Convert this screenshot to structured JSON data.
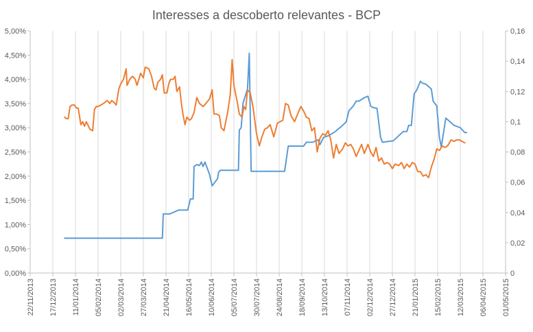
{
  "chart_data": {
    "type": "line",
    "title": "Interesses a descoberto relevantes - BCP",
    "xlabel": "",
    "ylabel_left": "",
    "ylabel_right": "",
    "x_ticks": [
      "22/11/2013",
      "17/12/2013",
      "11/01/2014",
      "05/02/2014",
      "02/03/2014",
      "27/03/2014",
      "21/04/2014",
      "16/05/2014",
      "10/06/2014",
      "05/07/2014",
      "30/07/2014",
      "24/08/2014",
      "18/09/2014",
      "13/10/2014",
      "07/11/2014",
      "02/12/2014",
      "27/12/2014",
      "21/01/2015",
      "15/02/2015",
      "12/03/2015",
      "06/04/2015",
      "01/05/2015"
    ],
    "y_left_ticks": [
      "0,00%",
      "0,50%",
      "1,00%",
      "1,50%",
      "2,00%",
      "2,50%",
      "3,00%",
      "3,50%",
      "4,00%",
      "4,50%",
      "5,00%"
    ],
    "y_right_ticks": [
      "0",
      "0,02",
      "0,04",
      "0,06",
      "0,08",
      "0,1",
      "0,12",
      "0,14",
      "0,16"
    ],
    "ylim_left": [
      0,
      5
    ],
    "ylim_right": [
      0,
      0.16
    ],
    "grid": "vertical",
    "series": [
      {
        "axis": "left",
        "color": "#5b9bd5",
        "points": [
          [
            "2013-12-30",
            0.72
          ],
          [
            "2014-04-17",
            0.72
          ],
          [
            "2014-04-18",
            1.22
          ],
          [
            "2014-04-25",
            1.22
          ],
          [
            "2014-05-05",
            1.3
          ],
          [
            "2014-05-15",
            1.3
          ],
          [
            "2014-05-18",
            1.53
          ],
          [
            "2014-05-21",
            1.53
          ],
          [
            "2014-05-22",
            2.2
          ],
          [
            "2014-05-25",
            2.24
          ],
          [
            "2014-05-28",
            2.22
          ],
          [
            "2014-05-30",
            2.29
          ],
          [
            "2014-06-01",
            2.2
          ],
          [
            "2014-06-03",
            2.29
          ],
          [
            "2014-06-08",
            2.04
          ],
          [
            "2014-06-11",
            1.8
          ],
          [
            "2014-06-15",
            1.9
          ],
          [
            "2014-06-17",
            1.95
          ],
          [
            "2014-06-18",
            2.08
          ],
          [
            "2014-06-20",
            2.12
          ],
          [
            "2014-07-10",
            2.12
          ],
          [
            "2014-07-11",
            2.95
          ],
          [
            "2014-07-13",
            3.0
          ],
          [
            "2014-07-15",
            3.5
          ],
          [
            "2014-07-17",
            3.62
          ],
          [
            "2014-07-20",
            3.8
          ],
          [
            "2014-07-22",
            4.54
          ],
          [
            "2014-07-24",
            2.1
          ],
          [
            "2014-08-30",
            2.1
          ],
          [
            "2014-09-03",
            2.62
          ],
          [
            "2014-09-20",
            2.62
          ],
          [
            "2014-09-23",
            2.7
          ],
          [
            "2014-09-30",
            2.7
          ],
          [
            "2014-10-06",
            2.75
          ],
          [
            "2014-10-08",
            2.65
          ],
          [
            "2014-10-12",
            2.8
          ],
          [
            "2014-10-18",
            2.84
          ],
          [
            "2014-10-25",
            2.92
          ],
          [
            "2014-11-02",
            3.05
          ],
          [
            "2014-11-06",
            3.12
          ],
          [
            "2014-11-09",
            3.35
          ],
          [
            "2014-11-14",
            3.45
          ],
          [
            "2014-11-17",
            3.55
          ],
          [
            "2014-11-20",
            3.55
          ],
          [
            "2014-11-26",
            3.62
          ],
          [
            "2014-11-30",
            3.65
          ],
          [
            "2014-12-03",
            3.45
          ],
          [
            "2014-12-05",
            3.42
          ],
          [
            "2014-12-10",
            3.4
          ],
          [
            "2014-12-14",
            2.8
          ],
          [
            "2014-12-16",
            2.7
          ],
          [
            "2014-12-28",
            2.73
          ],
          [
            "2015-01-08",
            2.92
          ],
          [
            "2015-01-12",
            2.92
          ],
          [
            "2015-01-14",
            3.05
          ],
          [
            "2015-01-17",
            3.05
          ],
          [
            "2015-01-20",
            3.7
          ],
          [
            "2015-01-23",
            3.78
          ],
          [
            "2015-01-27",
            3.96
          ],
          [
            "2015-01-29",
            3.92
          ],
          [
            "2015-02-02",
            3.9
          ],
          [
            "2015-02-08",
            3.8
          ],
          [
            "2015-02-10",
            3.55
          ],
          [
            "2015-02-14",
            3.45
          ],
          [
            "2015-02-17",
            2.8
          ],
          [
            "2015-02-19",
            2.6
          ],
          [
            "2015-02-24",
            3.2
          ],
          [
            "2015-03-02",
            3.1
          ],
          [
            "2015-03-05",
            3.05
          ],
          [
            "2015-03-12",
            3.0
          ],
          [
            "2015-03-17",
            2.9
          ],
          [
            "2015-03-19",
            2.9
          ]
        ]
      },
      {
        "axis": "right",
        "color": "#ed7d31",
        "points": [
          [
            "2013-12-30",
            0.103
          ],
          [
            "2014-01-01",
            0.102
          ],
          [
            "2014-01-03",
            0.102
          ],
          [
            "2014-01-05",
            0.11
          ],
          [
            "2014-01-07",
            0.111
          ],
          [
            "2014-01-10",
            0.111
          ],
          [
            "2014-01-12",
            0.109
          ],
          [
            "2014-01-14",
            0.109
          ],
          [
            "2014-01-17",
            0.098
          ],
          [
            "2014-01-19",
            0.1
          ],
          [
            "2014-01-21",
            0.097
          ],
          [
            "2014-01-23",
            0.1
          ],
          [
            "2014-01-27",
            0.095
          ],
          [
            "2014-01-30",
            0.094
          ],
          [
            "2014-02-01",
            0.108
          ],
          [
            "2014-02-03",
            0.11
          ],
          [
            "2014-02-05",
            0.11
          ],
          [
            "2014-02-08",
            0.111
          ],
          [
            "2014-02-11",
            0.112
          ],
          [
            "2014-02-15",
            0.114
          ],
          [
            "2014-02-18",
            0.112
          ],
          [
            "2014-02-20",
            0.114
          ],
          [
            "2014-02-22",
            0.113
          ],
          [
            "2014-02-25",
            0.111
          ],
          [
            "2014-02-28",
            0.122
          ],
          [
            "2014-03-02",
            0.125
          ],
          [
            "2014-03-05",
            0.128
          ],
          [
            "2014-03-08",
            0.135
          ],
          [
            "2014-03-09",
            0.124
          ],
          [
            "2014-03-12",
            0.128
          ],
          [
            "2014-03-15",
            0.13
          ],
          [
            "2014-03-18",
            0.128
          ],
          [
            "2014-03-20",
            0.124
          ],
          [
            "2014-03-24",
            0.132
          ],
          [
            "2014-03-27",
            0.129
          ],
          [
            "2014-03-29",
            0.136
          ],
          [
            "2014-04-02",
            0.135
          ],
          [
            "2014-04-05",
            0.13
          ],
          [
            "2014-04-08",
            0.122
          ],
          [
            "2014-04-10",
            0.121
          ],
          [
            "2014-04-12",
            0.126
          ],
          [
            "2014-04-15",
            0.128
          ],
          [
            "2014-04-17",
            0.131
          ],
          [
            "2014-04-19",
            0.119
          ],
          [
            "2014-04-22",
            0.119
          ],
          [
            "2014-04-24",
            0.125
          ],
          [
            "2014-04-26",
            0.128
          ],
          [
            "2014-04-29",
            0.128
          ],
          [
            "2014-05-01",
            0.13
          ],
          [
            "2014-05-03",
            0.12
          ],
          [
            "2014-05-06",
            0.123
          ],
          [
            "2014-05-08",
            0.112
          ],
          [
            "2014-05-10",
            0.104
          ],
          [
            "2014-05-12",
            0.098
          ],
          [
            "2014-05-14",
            0.103
          ],
          [
            "2014-05-17",
            0.101
          ],
          [
            "2014-05-19",
            0.102
          ],
          [
            "2014-05-22",
            0.106
          ],
          [
            "2014-05-25",
            0.116
          ],
          [
            "2014-05-28",
            0.112
          ],
          [
            "2014-06-01",
            0.11
          ],
          [
            "2014-06-04",
            0.112
          ],
          [
            "2014-06-08",
            0.115
          ],
          [
            "2014-06-11",
            0.121
          ],
          [
            "2014-06-13",
            0.105
          ],
          [
            "2014-06-16",
            0.105
          ],
          [
            "2014-06-19",
            0.104
          ],
          [
            "2014-06-21",
            0.096
          ],
          [
            "2014-06-24",
            0.094
          ],
          [
            "2014-06-28",
            0.106
          ],
          [
            "2014-07-01",
            0.118
          ],
          [
            "2014-07-03",
            0.141
          ],
          [
            "2014-07-05",
            0.124
          ],
          [
            "2014-07-07",
            0.118
          ],
          [
            "2014-07-09",
            0.112
          ],
          [
            "2014-07-11",
            0.105
          ],
          [
            "2014-07-14",
            0.103
          ],
          [
            "2014-07-16",
            0.11
          ],
          [
            "2014-07-18",
            0.108
          ],
          [
            "2014-07-20",
            0.121
          ],
          [
            "2014-07-23",
            0.119
          ],
          [
            "2014-07-26",
            0.11
          ],
          [
            "2014-07-30",
            0.092
          ],
          [
            "2014-08-02",
            0.084
          ],
          [
            "2014-08-05",
            0.09
          ],
          [
            "2014-08-08",
            0.095
          ],
          [
            "2014-08-11",
            0.096
          ],
          [
            "2014-08-14",
            0.098
          ],
          [
            "2014-08-18",
            0.09
          ],
          [
            "2014-08-22",
            0.099
          ],
          [
            "2014-08-25",
            0.1
          ],
          [
            "2014-08-28",
            0.101
          ],
          [
            "2014-08-31",
            0.112
          ],
          [
            "2014-09-03",
            0.111
          ],
          [
            "2014-09-06",
            0.104
          ],
          [
            "2014-09-10",
            0.1
          ],
          [
            "2014-09-14",
            0.106
          ],
          [
            "2014-09-17",
            0.11
          ],
          [
            "2014-09-20",
            0.107
          ],
          [
            "2014-09-23",
            0.103
          ],
          [
            "2014-09-26",
            0.102
          ],
          [
            "2014-09-29",
            0.094
          ],
          [
            "2014-10-02",
            0.096
          ],
          [
            "2014-10-05",
            0.08
          ],
          [
            "2014-10-08",
            0.089
          ],
          [
            "2014-10-11",
            0.092
          ],
          [
            "2014-10-14",
            0.091
          ],
          [
            "2014-10-17",
            0.094
          ],
          [
            "2014-10-20",
            0.088
          ],
          [
            "2014-10-23",
            0.076
          ],
          [
            "2014-10-26",
            0.085
          ],
          [
            "2014-10-29",
            0.079
          ],
          [
            "2014-11-02",
            0.082
          ],
          [
            "2014-11-05",
            0.086
          ],
          [
            "2014-11-08",
            0.084
          ],
          [
            "2014-11-11",
            0.085
          ],
          [
            "2014-11-14",
            0.082
          ],
          [
            "2014-11-17",
            0.077
          ],
          [
            "2014-11-20",
            0.081
          ],
          [
            "2014-11-23",
            0.085
          ],
          [
            "2014-11-26",
            0.079
          ],
          [
            "2014-11-30",
            0.085
          ],
          [
            "2014-12-03",
            0.08
          ],
          [
            "2014-12-06",
            0.077
          ],
          [
            "2014-12-09",
            0.083
          ],
          [
            "2014-12-12",
            0.074
          ],
          [
            "2014-12-15",
            0.076
          ],
          [
            "2014-12-18",
            0.072
          ],
          [
            "2014-12-21",
            0.073
          ],
          [
            "2014-12-24",
            0.072
          ],
          [
            "2014-12-27",
            0.069
          ],
          [
            "2014-12-30",
            0.072
          ],
          [
            "2015-01-03",
            0.071
          ],
          [
            "2015-01-06",
            0.073
          ],
          [
            "2015-01-09",
            0.069
          ],
          [
            "2015-01-12",
            0.072
          ],
          [
            "2015-01-15",
            0.07
          ],
          [
            "2015-01-18",
            0.073
          ],
          [
            "2015-01-21",
            0.072
          ],
          [
            "2015-01-24",
            0.067
          ],
          [
            "2015-01-27",
            0.067
          ],
          [
            "2015-01-30",
            0.064
          ],
          [
            "2015-02-02",
            0.065
          ],
          [
            "2015-02-05",
            0.063
          ],
          [
            "2015-02-08",
            0.07
          ],
          [
            "2015-02-11",
            0.075
          ],
          [
            "2015-02-14",
            0.082
          ],
          [
            "2015-02-17",
            0.081
          ],
          [
            "2015-02-20",
            0.084
          ],
          [
            "2015-02-23",
            0.083
          ],
          [
            "2015-02-26",
            0.084
          ],
          [
            "2015-03-02",
            0.088
          ],
          [
            "2015-03-05",
            0.087
          ],
          [
            "2015-03-08",
            0.088
          ],
          [
            "2015-03-11",
            0.088
          ],
          [
            "2015-03-14",
            0.087
          ],
          [
            "2015-03-17",
            0.086
          ]
        ]
      }
    ]
  }
}
